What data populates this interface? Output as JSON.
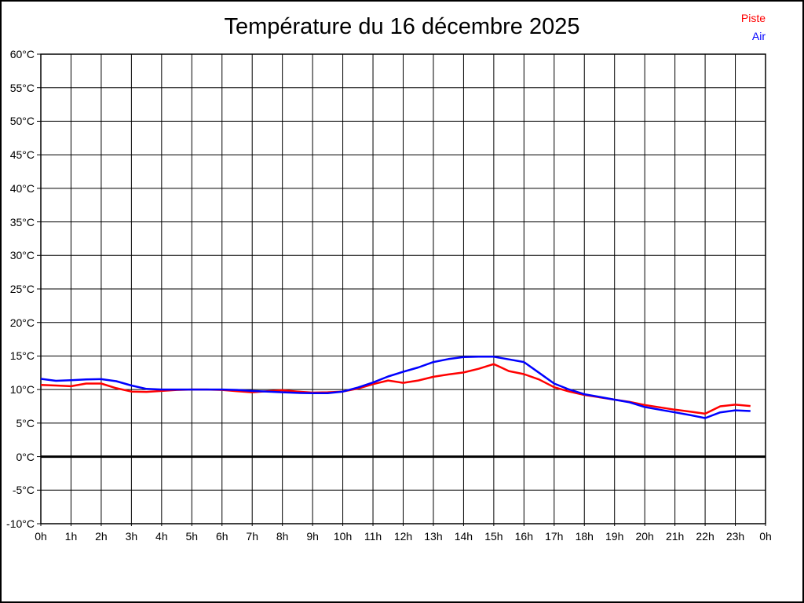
{
  "chart_data": {
    "type": "line",
    "title": "Température du 16 décembre 2025",
    "xlabel": "",
    "ylabel": "",
    "xlim": [
      0,
      24
    ],
    "ylim": [
      -10,
      60
    ],
    "grid": true,
    "legend_position": "top-right",
    "zero_line_value": 0,
    "x_tick_labels": [
      "0h",
      "1h",
      "2h",
      "3h",
      "4h",
      "5h",
      "6h",
      "7h",
      "8h",
      "9h",
      "10h",
      "11h",
      "12h",
      "13h",
      "14h",
      "15h",
      "16h",
      "17h",
      "18h",
      "19h",
      "20h",
      "21h",
      "22h",
      "23h",
      "0h"
    ],
    "x_tick_hours": [
      0,
      1,
      2,
      3,
      4,
      5,
      6,
      7,
      8,
      9,
      10,
      11,
      12,
      13,
      14,
      15,
      16,
      17,
      18,
      19,
      20,
      21,
      22,
      23,
      24
    ],
    "y_tick_labels": [
      "60°C",
      "55°C",
      "50°C",
      "45°C",
      "40°C",
      "35°C",
      "30°C",
      "25°C",
      "20°C",
      "15°C",
      "10°C",
      "5°C",
      "0°C",
      "-5°C",
      "-10°C"
    ],
    "y_tick_values": [
      60,
      55,
      50,
      45,
      40,
      35,
      30,
      25,
      20,
      15,
      10,
      5,
      0,
      -5,
      -10
    ],
    "x": [
      0,
      0.5,
      1,
      1.5,
      2,
      2.5,
      3,
      3.5,
      4,
      4.5,
      5,
      5.5,
      6,
      6.5,
      7,
      7.5,
      8,
      8.5,
      9,
      9.5,
      10,
      10.5,
      11,
      11.5,
      12,
      12.5,
      13,
      13.5,
      14,
      14.5,
      15,
      15.5,
      16,
      16.5,
      17,
      17.5,
      18,
      18.5,
      19,
      19.5,
      20,
      20.5,
      21,
      21.5,
      22,
      22.5,
      23,
      23.5
    ],
    "series": [
      {
        "name": "Piste",
        "color": "#ff0000",
        "values": [
          10.7,
          10.6,
          10.5,
          10.9,
          10.9,
          10.2,
          9.7,
          9.65,
          9.8,
          9.95,
          10.0,
          10.0,
          9.95,
          9.75,
          9.6,
          9.75,
          9.9,
          9.7,
          9.55,
          9.6,
          9.7,
          10.15,
          10.8,
          11.35,
          11.0,
          11.35,
          11.9,
          12.25,
          12.55,
          13.1,
          13.8,
          12.75,
          12.3,
          11.5,
          10.35,
          9.7,
          9.2,
          8.85,
          8.5,
          8.15,
          7.7,
          7.35,
          7.0,
          6.7,
          6.4,
          7.5,
          7.75,
          7.55
        ]
      },
      {
        "name": "Air",
        "color": "#0000ff",
        "values": [
          11.6,
          11.3,
          11.4,
          11.5,
          11.55,
          11.25,
          10.6,
          10.1,
          10.0,
          10.0,
          10.0,
          10.0,
          10.0,
          9.95,
          9.8,
          9.7,
          9.6,
          9.5,
          9.45,
          9.45,
          9.7,
          10.3,
          11.05,
          11.95,
          12.65,
          13.3,
          14.1,
          14.55,
          14.85,
          14.9,
          14.9,
          14.5,
          14.1,
          12.5,
          10.9,
          10.0,
          9.3,
          8.9,
          8.5,
          8.1,
          7.4,
          7.0,
          6.6,
          6.2,
          5.75,
          6.6,
          6.9,
          6.8
        ]
      }
    ],
    "colors": {
      "grid": "#000000",
      "frame": "#000000",
      "zero_line": "#000000",
      "background": "#ffffff"
    }
  }
}
